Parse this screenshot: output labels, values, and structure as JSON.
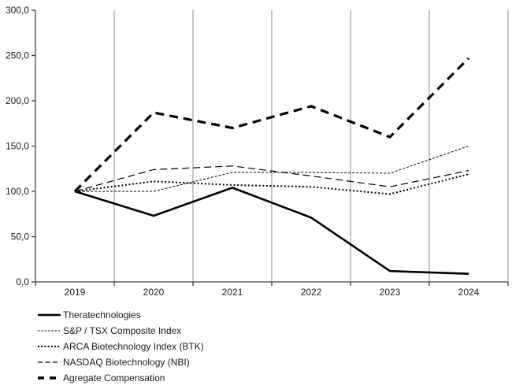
{
  "chart_data": {
    "type": "line",
    "title": "",
    "xlabel": "",
    "ylabel": "",
    "categories": [
      "2019",
      "2020",
      "2021",
      "2022",
      "2023",
      "2024"
    ],
    "series": [
      {
        "name": "Theratechnologies",
        "values": [
          100,
          73,
          104,
          71,
          12,
          9
        ],
        "line_style": "solid-thick",
        "color": "#000000"
      },
      {
        "name": "S&P / TSX Composite Index",
        "values": [
          100,
          100,
          121,
          121,
          120,
          150
        ],
        "line_style": "dash-fine",
        "color": "#000000"
      },
      {
        "name": "ARCA Biotechnology Index (BTK)",
        "values": [
          100,
          111,
          107,
          105,
          97,
          119
        ],
        "line_style": "dotted",
        "color": "#000000"
      },
      {
        "name": "NASDAQ Biotechnology (NBI)",
        "values": [
          100,
          124,
          128,
          117,
          105,
          123
        ],
        "line_style": "dash-long",
        "color": "#000000"
      },
      {
        "name": "Agregate Compensation",
        "values": [
          100,
          187,
          170,
          194,
          160,
          247
        ],
        "line_style": "dash-thick",
        "color": "#000000"
      }
    ],
    "ylim": [
      0,
      300
    ],
    "y_ticks": [
      0,
      50,
      100,
      150,
      200,
      250,
      300
    ],
    "y_tick_labels": [
      "0,0",
      "50,0",
      "100,0",
      "150,0",
      "200,0",
      "250,0",
      "300,0"
    ],
    "grid": "vertical",
    "gridline_color": "#a6a6a6",
    "axis_color": "#404040",
    "legend_position": "bottom-left",
    "background": "#ffffff"
  }
}
